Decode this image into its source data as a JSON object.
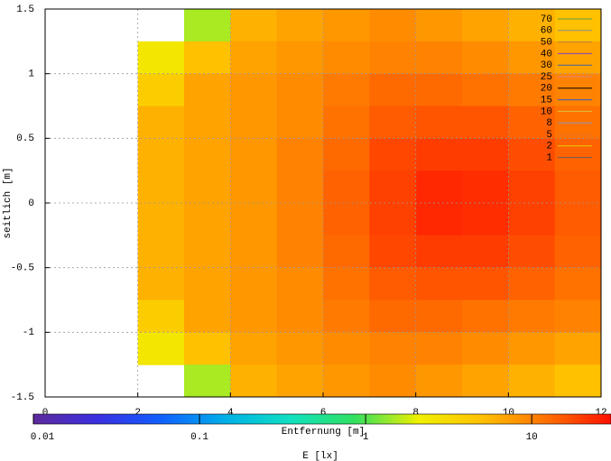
{
  "chart_data": {
    "type": "heatmap",
    "xlabel": "Entfernung [m]",
    "ylabel": "seitlich [m]",
    "colorbar_label": "E [lx]",
    "xlim": [
      0,
      12
    ],
    "ylim": [
      -1.5,
      1.5
    ],
    "xticks": [
      0,
      2,
      4,
      6,
      8,
      10,
      12
    ],
    "yticks": [
      -1.5,
      -1,
      -0.5,
      0,
      0.5,
      1,
      1.5
    ],
    "grid": true,
    "x": [
      2.5,
      3.5,
      4.5,
      5.5,
      6.5,
      7.5,
      8.5,
      9.5,
      10.5,
      11.5
    ],
    "y": [
      1.375,
      1.125,
      0.875,
      0.625,
      0.375,
      0.125,
      -0.125,
      -0.375,
      -0.625,
      -0.875,
      -1.125,
      -1.375
    ],
    "z": [
      [
        null,
        1.5,
        6,
        7,
        8,
        9,
        8,
        7,
        6,
        5
      ],
      [
        2.5,
        5,
        7,
        8,
        9,
        10,
        10,
        9,
        8,
        7
      ],
      [
        4,
        7,
        8,
        9,
        11,
        13,
        13,
        12,
        11,
        10
      ],
      [
        6,
        7,
        8,
        9,
        12,
        15,
        16,
        16,
        14,
        12
      ],
      [
        6,
        7,
        8,
        10,
        13,
        18,
        20,
        20,
        17,
        14
      ],
      [
        6,
        7,
        8,
        10,
        14,
        19,
        24,
        23,
        19,
        15
      ],
      [
        6,
        7,
        8,
        10,
        14,
        19,
        24,
        23,
        19,
        15
      ],
      [
        6,
        7,
        8,
        10,
        13,
        18,
        20,
        20,
        17,
        14
      ],
      [
        6,
        7,
        8,
        9,
        12,
        15,
        16,
        16,
        14,
        12
      ],
      [
        4,
        7,
        8,
        9,
        11,
        13,
        13,
        12,
        11,
        10
      ],
      [
        2.5,
        5,
        7,
        8,
        9,
        10,
        10,
        9,
        8,
        7
      ],
      [
        null,
        1.5,
        6,
        7,
        8,
        9,
        8,
        7,
        6,
        5
      ]
    ],
    "zlim": [
      0.01,
      30
    ],
    "zlog": true,
    "zticks": [
      0.01,
      0.1,
      1,
      10
    ],
    "colormap": [
      "#5c2a9c",
      "#3a2ee0",
      "#1060ff",
      "#00b0e8",
      "#10e0c0",
      "#30e060",
      "#f0f000",
      "#ffc000",
      "#ff7000",
      "#ff1000"
    ],
    "contour_levels": {
      "values": [
        70,
        60,
        50,
        40,
        30,
        25,
        20,
        15,
        10,
        8,
        5,
        2,
        1
      ],
      "colors": [
        "#6a9a3a",
        "#909090",
        "#c08040",
        "#8040c0",
        "#4060a0",
        "#e08080",
        "#000000",
        "#3060c0",
        "#e0c040",
        "#9090c0",
        "#e07030",
        "#e0d000",
        "#606060"
      ]
    },
    "legend": "top-right"
  }
}
